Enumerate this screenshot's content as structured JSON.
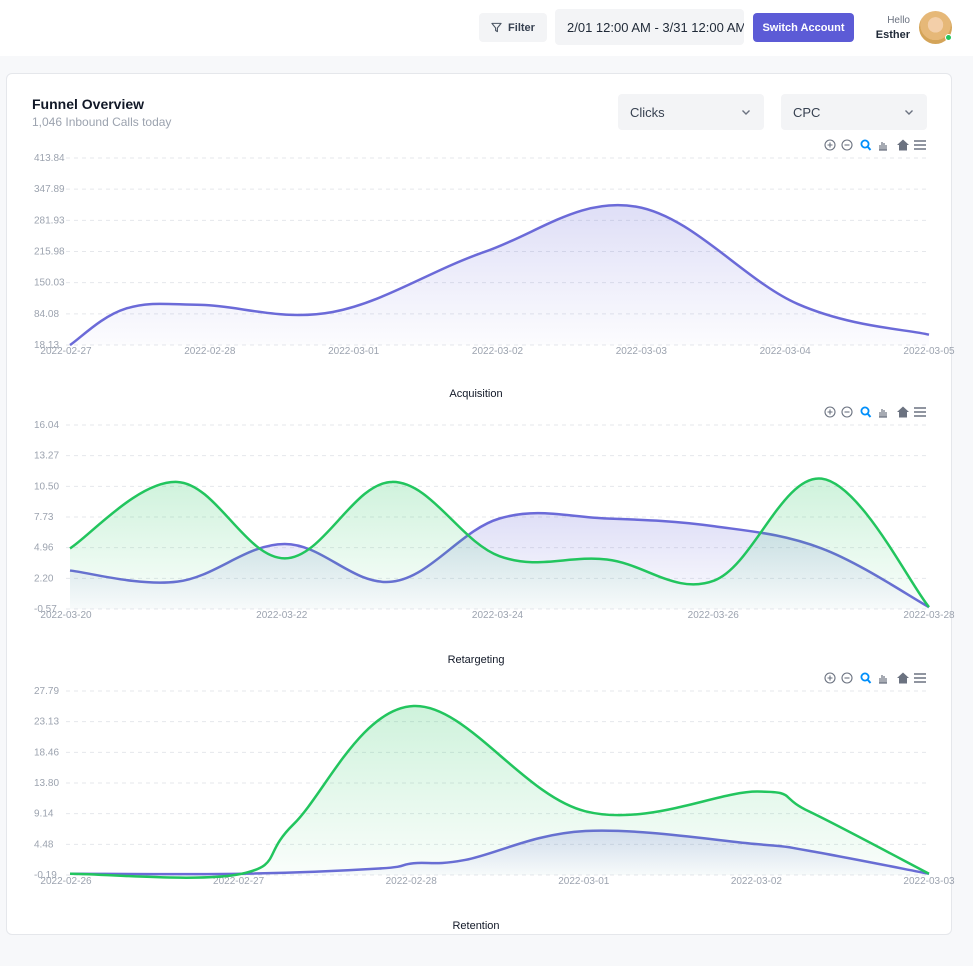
{
  "header": {
    "filter_label": "Filter",
    "date_range": "2/01 12:00 AM - 3/31 12:00 AM",
    "switch_label": "Switch Account",
    "greeting": "Hello",
    "user_name": "Esther",
    "status_color": "#22c55e"
  },
  "card": {
    "title": "Funnel Overview",
    "subtitle": "1,046 Inbound Calls today",
    "select1": "Clicks",
    "select2": "CPC"
  },
  "colors": {
    "purple": "#6b6ad8",
    "green": "#22c55e",
    "accent": "#5c5bd6"
  },
  "toolbar_icons": [
    "zoom-in-icon",
    "zoom-out-icon",
    "selection-zoom-icon",
    "pan-icon",
    "home-icon",
    "menu-icon"
  ],
  "chart_data": [
    {
      "type": "area",
      "title": "Acquisition",
      "x": [
        "2022-02-27",
        "2022-02-28",
        "2022-03-01",
        "2022-03-02",
        "2022-03-03",
        "2022-03-04",
        "2022-03-05"
      ],
      "ytick_labels": [
        "413.84",
        "347.89",
        "281.93",
        "215.98",
        "150.03",
        "84.08",
        "18.13"
      ],
      "ylim": [
        18.13,
        413.84
      ],
      "grid": true,
      "series": [
        {
          "color": "#6b6ad8",
          "points": [
            [
              0,
              18
            ],
            [
              0.55,
              95
            ],
            [
              1.3,
              103
            ],
            [
              2.6,
              88
            ],
            [
              4.1,
              215
            ],
            [
              5.6,
              311
            ],
            [
              7.2,
              105
            ],
            [
              8.5,
              40
            ]
          ],
          "values_note": ""
        }
      ]
    },
    {
      "type": "area",
      "title": "Retargeting",
      "x": [
        "2022-03-20",
        "2022-03-22",
        "2022-03-24",
        "2022-03-26",
        "2022-03-28"
      ],
      "ytick_labels": [
        "16.04",
        "13.27",
        "10.50",
        "7.73",
        "4.96",
        "2.20",
        "-0.57"
      ],
      "ylim": [
        -0.57,
        16.04
      ],
      "grid": true,
      "series": [
        {
          "color": "#6b6ad8",
          "points": [
            [
              0,
              2.9
            ],
            [
              1,
              1.9
            ],
            [
              2,
              5.3
            ],
            [
              3,
              1.9
            ],
            [
              4,
              7.6
            ],
            [
              5,
              7.6
            ],
            [
              6,
              6.9
            ],
            [
              7,
              4.9
            ],
            [
              8,
              -0.4
            ]
          ]
        },
        {
          "color": "#22c55e",
          "points": [
            [
              0,
              4.9
            ],
            [
              1,
              10.9
            ],
            [
              2,
              4.0
            ],
            [
              3,
              10.9
            ],
            [
              4,
              4.2
            ],
            [
              5,
              3.9
            ],
            [
              6,
              2.0
            ],
            [
              7,
              11.2
            ],
            [
              8,
              -0.4
            ]
          ]
        }
      ]
    },
    {
      "type": "area",
      "title": "Retention",
      "x": [
        "2022-02-26",
        "2022-02-27",
        "2022-02-28",
        "2022-03-01",
        "2022-03-02",
        "2022-03-03"
      ],
      "ytick_labels": [
        "27.79",
        "23.13",
        "18.46",
        "13.80",
        "9.14",
        "4.48",
        "-0.19"
      ],
      "ylim": [
        -0.19,
        27.79
      ],
      "grid": true,
      "series": [
        {
          "color": "#6b6ad8",
          "points": [
            [
              0,
              0.0
            ],
            [
              1,
              0.0
            ],
            [
              1.8,
              0.8
            ],
            [
              2,
              1.6
            ],
            [
              2.3,
              2.1
            ],
            [
              3,
              6.5
            ],
            [
              4,
              4.5
            ],
            [
              4.3,
              3.5
            ],
            [
              5,
              0.0
            ]
          ]
        },
        {
          "color": "#22c55e",
          "points": [
            [
              0,
              0.0
            ],
            [
              1,
              0.0
            ],
            [
              1.3,
              7.5
            ],
            [
              2,
              25.5
            ],
            [
              3,
              9.5
            ],
            [
              4,
              12.5
            ],
            [
              4.3,
              9.5
            ],
            [
              5,
              0.0
            ]
          ]
        }
      ]
    }
  ]
}
